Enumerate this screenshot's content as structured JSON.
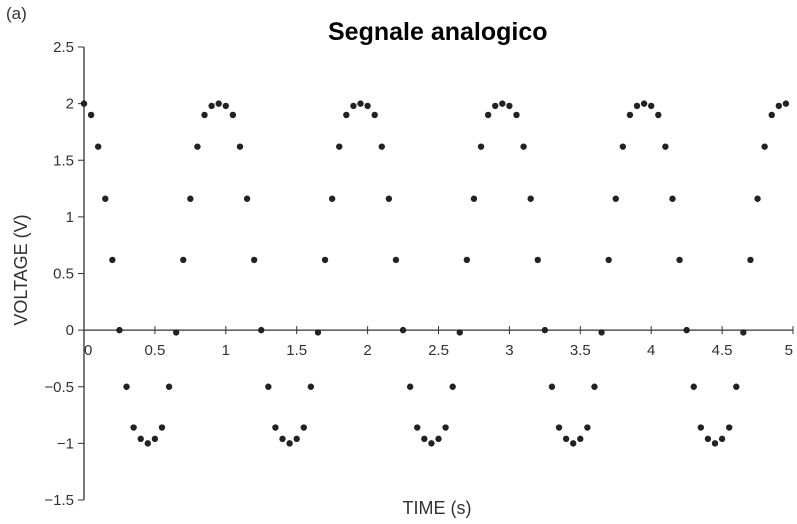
{
  "panel_label": "(a)",
  "chart_data": {
    "type": "scatter",
    "title": "Segnale analogico",
    "xlabel": "TIME (s)",
    "ylabel": "VOLTAGE (V)",
    "xlim": [
      0,
      5
    ],
    "ylim": [
      -1.5,
      2.5
    ],
    "x_ticks": [
      0,
      0.5,
      1,
      1.5,
      2,
      2.5,
      3,
      3.5,
      4,
      4.5,
      5
    ],
    "x_tick_labels": [
      "0",
      "0.5",
      "1",
      "1.5",
      "2",
      "2.5",
      "3",
      "3.5",
      "4",
      "4.5",
      "5"
    ],
    "y_ticks": [
      2.5,
      2,
      1.5,
      1,
      0.5,
      0,
      -0.5,
      -1,
      -1.5
    ],
    "y_tick_labels": [
      "2.5",
      "2",
      "1.5",
      "1",
      "0.5",
      "0",
      "−0.5",
      "−1",
      "−1.5"
    ],
    "grid": false,
    "legend": "none",
    "marker_color": "#222222",
    "series": [
      {
        "x": [
          0,
          0.05,
          0.1,
          0.15,
          0.2,
          0.25,
          0.3,
          0.35,
          0.4,
          0.45,
          0.5,
          0.55,
          0.6,
          0.65,
          0.7,
          0.75,
          0.8,
          0.85,
          0.9,
          0.95,
          1,
          1.05,
          1.1,
          1.15,
          1.2,
          1.25,
          1.3,
          1.35,
          1.4,
          1.45,
          1.5,
          1.55,
          1.6,
          1.65,
          1.7,
          1.75,
          1.8,
          1.85,
          1.9,
          1.95,
          2,
          2.05,
          2.1,
          2.15,
          2.2,
          2.25,
          2.3,
          2.35,
          2.4,
          2.45,
          2.5,
          2.55,
          2.6,
          2.65,
          2.7,
          2.75,
          2.8,
          2.85,
          2.9,
          2.95,
          3,
          3.05,
          3.1,
          3.15,
          3.2,
          3.25,
          3.3,
          3.35,
          3.4,
          3.45,
          3.5,
          3.55,
          3.6,
          3.65,
          3.7,
          3.75,
          3.8,
          3.85,
          3.9,
          3.95,
          4,
          4.05,
          4.1,
          4.15,
          4.2,
          4.25,
          4.3,
          4.35,
          4.4,
          4.45,
          4.5,
          4.55,
          4.6,
          4.65,
          4.7,
          4.75,
          4.8,
          4.85,
          4.9,
          4.95
        ],
        "y": [
          2,
          1.9,
          1.62,
          1.16,
          0.62,
          0.0,
          -0.5,
          -0.86,
          -0.96,
          -1.0,
          -0.96,
          -0.86,
          -0.5,
          -0.02,
          0.62,
          1.16,
          1.62,
          1.9,
          1.98,
          2.0,
          1.98,
          1.9,
          1.62,
          1.16,
          0.62,
          0.0,
          -0.5,
          -0.86,
          -0.96,
          -1.0,
          -0.96,
          -0.86,
          -0.5,
          -0.02,
          0.62,
          1.16,
          1.62,
          1.9,
          1.98,
          2.0,
          1.98,
          1.9,
          1.62,
          1.16,
          0.62,
          0.0,
          -0.5,
          -0.86,
          -0.96,
          -1.0,
          -0.96,
          -0.86,
          -0.5,
          -0.02,
          0.62,
          1.16,
          1.62,
          1.9,
          1.98,
          2.0,
          1.98,
          1.9,
          1.62,
          1.16,
          0.62,
          0.0,
          -0.5,
          -0.86,
          -0.96,
          -1.0,
          -0.96,
          -0.86,
          -0.5,
          -0.02,
          0.62,
          1.16,
          1.62,
          1.9,
          1.98,
          2.0,
          1.98,
          1.9,
          1.62,
          1.16,
          0.62,
          0.0,
          -0.5,
          -0.86,
          -0.96,
          -1.0,
          -0.96,
          -0.86,
          -0.5,
          -0.02,
          0.62,
          1.16,
          1.62,
          1.9,
          1.98,
          2.0
        ]
      }
    ]
  }
}
